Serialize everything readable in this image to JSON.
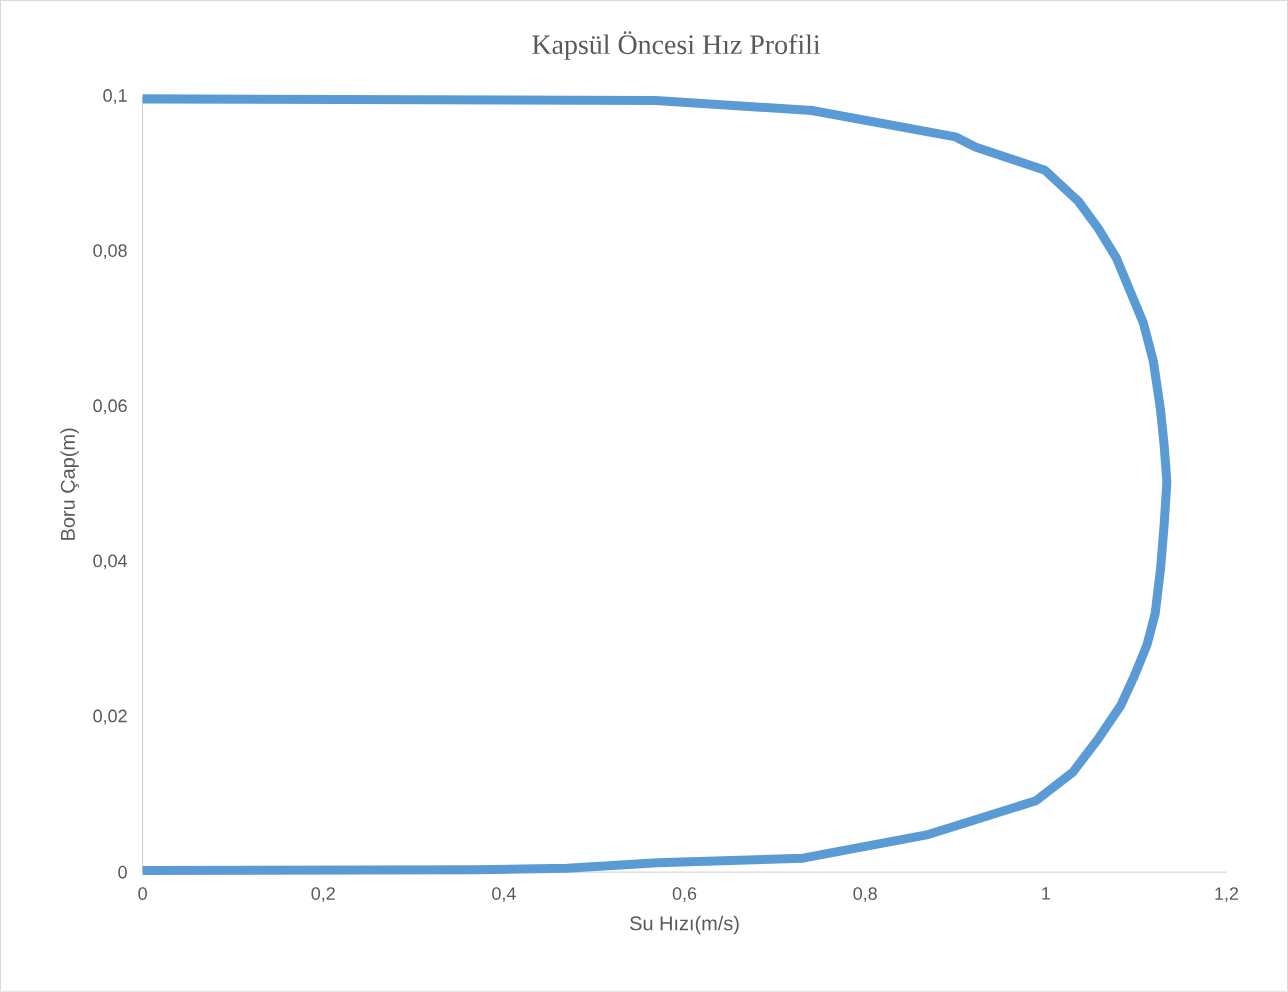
{
  "chart_data": {
    "type": "line",
    "title": "Kapsül Öncesi Hız Profili",
    "xlabel": "Su Hızı(m/s)",
    "ylabel": "Boru Çap(m)",
    "color": "#5b9bd5",
    "x": [
      0,
      0.37,
      0.47,
      0.57,
      0.731,
      0.868,
      0.989,
      1.03,
      1.058,
      1.083,
      1.098,
      1.112,
      1.121,
      1.127,
      1.131,
      1.134,
      1.131,
      1.127,
      1.119,
      1.108,
      1.078,
      1.058,
      1.036,
      0.999,
      0.922,
      0.9,
      0.741,
      0.568,
      0
    ],
    "values": [
      0.0002,
      0.0003,
      0.0005,
      0.0012,
      0.0018,
      0.0048,
      0.0092,
      0.0129,
      0.0172,
      0.0215,
      0.0253,
      0.0293,
      0.0333,
      0.0391,
      0.0448,
      0.0503,
      0.055,
      0.0596,
      0.0659,
      0.0708,
      0.0792,
      0.083,
      0.0865,
      0.0905,
      0.0935,
      0.0948,
      0.0982,
      0.0995,
      0.0997
    ],
    "xlim": [
      0,
      1.2
    ],
    "ylim": [
      0,
      0.1
    ],
    "xticks": [
      0,
      {
        "value": 0.2,
        "label": "0,2"
      },
      {
        "value": 0.4,
        "label": "0,4"
      },
      {
        "value": 0.6,
        "label": "0,6"
      },
      {
        "value": 0.8,
        "label": "0,8"
      },
      1,
      {
        "value": 1.2,
        "label": "1,2"
      }
    ],
    "yticks": [
      0,
      {
        "value": 0.02,
        "label": "0,02"
      },
      {
        "value": 0.04,
        "label": "0,04"
      },
      {
        "value": 0.06,
        "label": "0,06"
      },
      {
        "value": 0.08,
        "label": "0,08"
      },
      {
        "value": 0.1,
        "label": "0,1"
      }
    ]
  }
}
